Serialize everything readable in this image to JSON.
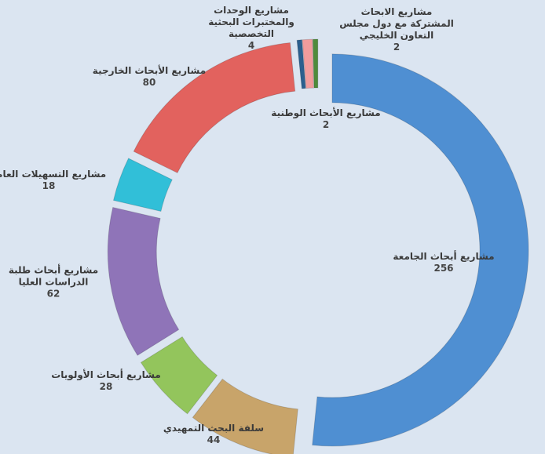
{
  "chart_data": {
    "type": "donut",
    "categories": [
      "مشاريع أبحاث الجامعة",
      "سلفة البحث التمهيدي",
      "مشاريع أبحاث الأولويات",
      "مشاريع أبحاث طلبة الدراسات العليا",
      "مشاريع التسهيلات العامة",
      "مشاريع الأبحاث الخارجية",
      "مشاريع الأبحاث الوطنية",
      "مشاريع الوحدات والمختبرات البحثية التخصصية",
      "مشاريع الابحاث المشتركة مع دول مجلس التعاون الخليجي"
    ],
    "values": [
      256,
      44,
      28,
      62,
      18,
      80,
      2,
      4,
      2
    ],
    "colors": [
      "#4f8fd2",
      "#c8a46a",
      "#93c55c",
      "#8f74b8",
      "#31bfd8",
      "#e2625e",
      "#2b5f8e",
      "#f19c9c",
      "#4f8b3b"
    ]
  }
}
